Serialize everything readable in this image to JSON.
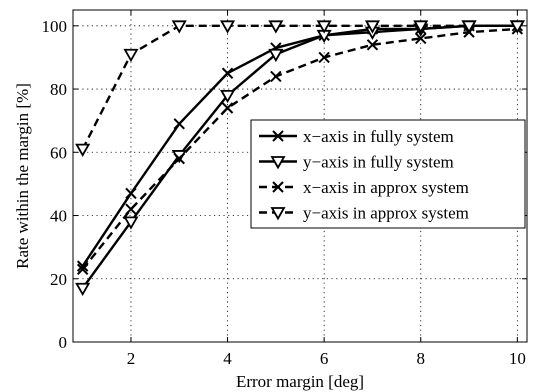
{
  "chart_data": {
    "type": "line",
    "xlabel": "Error margin [deg]",
    "ylabel": "Rate within the margin [%]",
    "xlim": [
      0.8,
      10.2
    ],
    "ylim": [
      0,
      105
    ],
    "x_ticks": [
      2,
      4,
      6,
      8,
      10
    ],
    "y_ticks": [
      0,
      20,
      40,
      60,
      80,
      100
    ],
    "grid": true,
    "legend_position": "center-right",
    "x": [
      1,
      2,
      3,
      4,
      5,
      6,
      7,
      8,
      9,
      10
    ],
    "series": [
      {
        "name": "x−axis in fully system",
        "values": [
          24,
          47,
          69,
          85,
          93,
          97,
          99,
          99,
          100,
          100
        ],
        "line": "solid",
        "marker": "x"
      },
      {
        "name": "y−axis in fully system",
        "values": [
          17,
          38,
          59,
          78,
          91,
          97,
          98,
          99,
          100,
          100
        ],
        "line": "solid",
        "marker": "triangle-down-open"
      },
      {
        "name": "x−axis in approx system",
        "values": [
          23,
          42,
          58,
          74,
          84,
          90,
          94,
          96,
          98,
          99
        ],
        "line": "dashed",
        "marker": "x"
      },
      {
        "name": "y−axis in approx system",
        "values": [
          61,
          91,
          100,
          100,
          100,
          100,
          100,
          100,
          100,
          100
        ],
        "line": "dashed",
        "marker": "triangle-down-open"
      }
    ]
  },
  "colors": {
    "line": "#000000",
    "grid": "#000000",
    "background": "#ffffff"
  }
}
